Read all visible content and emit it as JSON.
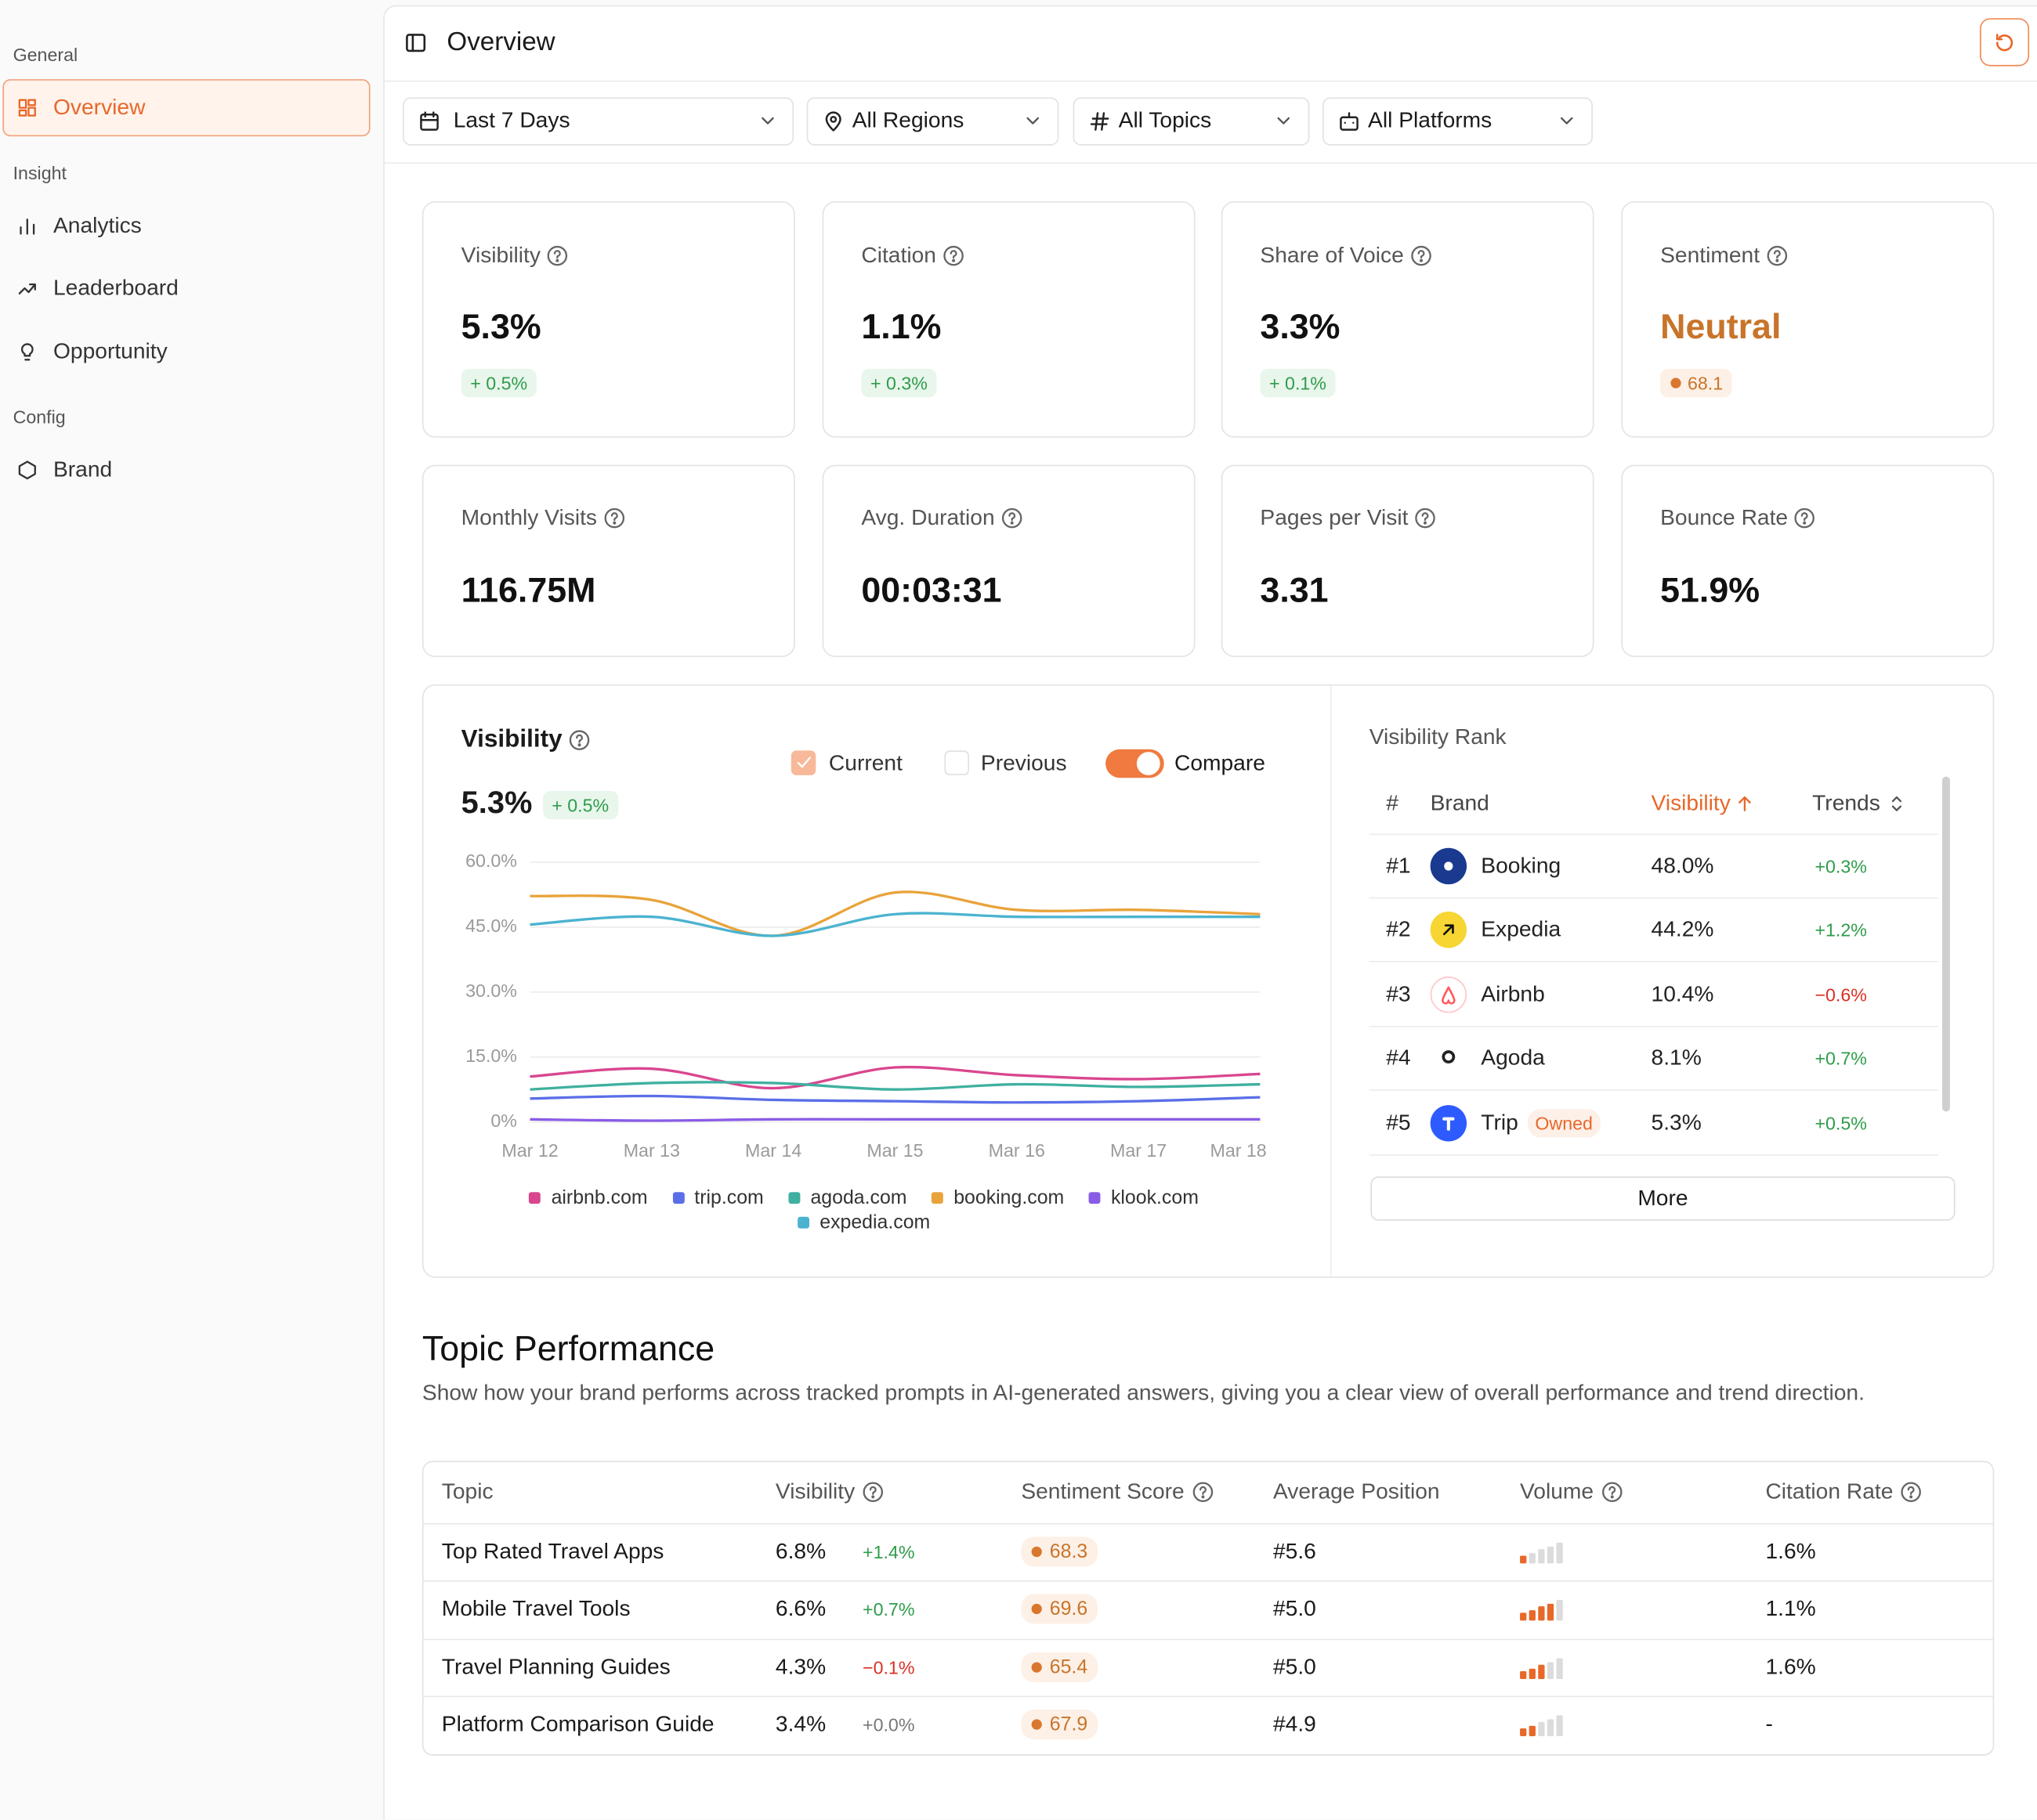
{
  "sidebar": {
    "sections": [
      {
        "title": "General",
        "items": [
          "Overview"
        ]
      },
      {
        "title": "Insight",
        "items": [
          "Analytics",
          "Leaderboard",
          "Opportunity"
        ]
      },
      {
        "title": "Config",
        "items": [
          "Brand"
        ]
      }
    ]
  },
  "header": {
    "title": "Overview"
  },
  "filters": [
    "Last 7 Days",
    "All Regions",
    "All Topics",
    "All Platforms"
  ],
  "metrics": [
    {
      "label": "Visibility",
      "value": "5.3%",
      "change": "+ 0.5%"
    },
    {
      "label": "Citation",
      "value": "1.1%",
      "change": "+ 0.3%"
    },
    {
      "label": "Share of Voice",
      "value": "3.3%",
      "change": "+ 0.1%"
    },
    {
      "label": "Sentiment",
      "value": "Neutral",
      "score": "68.1"
    },
    {
      "label": "Monthly Visits",
      "value": "116.75M"
    },
    {
      "label": "Avg. Duration",
      "value": "00:03:31"
    },
    {
      "label": "Pages per Visit",
      "value": "3.31"
    },
    {
      "label": "Bounce Rate",
      "value": "51.9%"
    }
  ],
  "visibility_panel": {
    "title": "Visibility",
    "value": "5.3%",
    "change": "+ 0.5%",
    "toggles": [
      "Current",
      "Previous",
      "Compare"
    ]
  },
  "chart_data": {
    "type": "line",
    "x": [
      "Mar 12",
      "Mar 13",
      "Mar 14",
      "Mar 15",
      "Mar 16",
      "Mar 17",
      "Mar 18"
    ],
    "ylim": [
      0,
      60
    ],
    "yticks": [
      {
        "value": 0,
        "label": "0%"
      },
      {
        "value": 15,
        "label": "15.0%"
      },
      {
        "value": 30,
        "label": "30.0%"
      },
      {
        "value": 45,
        "label": "45.0%"
      },
      {
        "value": 60,
        "label": "60.0%"
      }
    ],
    "grid": true,
    "series": [
      {
        "name": "airbnb.com",
        "color": "#d9468f",
        "values": [
          10.5,
          12.3,
          7.8,
          12.6,
          10.8,
          9.9,
          11.1
        ]
      },
      {
        "name": "trip.com",
        "color": "#5b6ee8",
        "values": [
          5.4,
          6.0,
          5.1,
          4.8,
          4.5,
          4.8,
          5.7
        ]
      },
      {
        "name": "agoda.com",
        "color": "#3fb0a0",
        "values": [
          7.5,
          9.0,
          9.0,
          7.5,
          8.7,
          8.1,
          8.7
        ]
      },
      {
        "name": "booking.com",
        "color": "#e8a33a",
        "values": [
          52.2,
          51.3,
          43.0,
          53.0,
          49.0,
          49.0,
          48.0
        ]
      },
      {
        "name": "klook.com",
        "color": "#8a5ce6",
        "values": [
          0.6,
          0.3,
          0.6,
          0.6,
          0.6,
          0.6,
          0.6
        ]
      },
      {
        "name": "expedia.com",
        "color": "#4bb3d0",
        "values": [
          45.6,
          47.4,
          43.0,
          48.0,
          47.4,
          47.4,
          47.4
        ]
      }
    ]
  },
  "rank": {
    "title": "Visibility Rank",
    "columns": [
      "#",
      "Brand",
      "Visibility",
      "Trends"
    ],
    "rows": [
      {
        "rank": "#1",
        "brand": "Booking",
        "visibility": "48.0%",
        "trend": "+0.3%"
      },
      {
        "rank": "#2",
        "brand": "Expedia",
        "visibility": "44.2%",
        "trend": "+1.2%"
      },
      {
        "rank": "#3",
        "brand": "Airbnb",
        "visibility": "10.4%",
        "trend": "−0.6%"
      },
      {
        "rank": "#4",
        "brand": "Agoda",
        "visibility": "8.1%",
        "trend": "+0.7%"
      },
      {
        "rank": "#5",
        "brand": "Trip",
        "tag": "Owned",
        "visibility": "5.3%",
        "trend": "+0.5%"
      }
    ],
    "button": "More"
  },
  "topics": {
    "title": "Topic Performance",
    "description": "Show how your brand performs across tracked prompts in AI-generated answers, giving you a clear view of overall performance and trend direction.",
    "columns": [
      "Topic",
      "Visibility",
      "Sentiment Score",
      "Average Position",
      "Volume",
      "Citation Rate"
    ],
    "rows": [
      {
        "topic": "Top Rated Travel Apps",
        "visibility": "6.8%",
        "change": "+1.4%",
        "sentiment": "68.3",
        "position": "#5.6",
        "volume": 1,
        "citation": "1.6%"
      },
      {
        "topic": "Mobile Travel Tools",
        "visibility": "6.6%",
        "change": "+0.7%",
        "sentiment": "69.6",
        "position": "#5.0",
        "volume": 4,
        "citation": "1.1%"
      },
      {
        "topic": "Travel Planning Guides",
        "visibility": "4.3%",
        "change": "−0.1%",
        "sentiment": "65.4",
        "position": "#5.0",
        "volume": 3,
        "citation": "1.6%"
      },
      {
        "topic": "Platform Comparison Guide",
        "visibility": "3.4%",
        "change": "+0.0%",
        "sentiment": "67.9",
        "position": "#4.9",
        "volume": 2,
        "citation": "-"
      }
    ]
  }
}
